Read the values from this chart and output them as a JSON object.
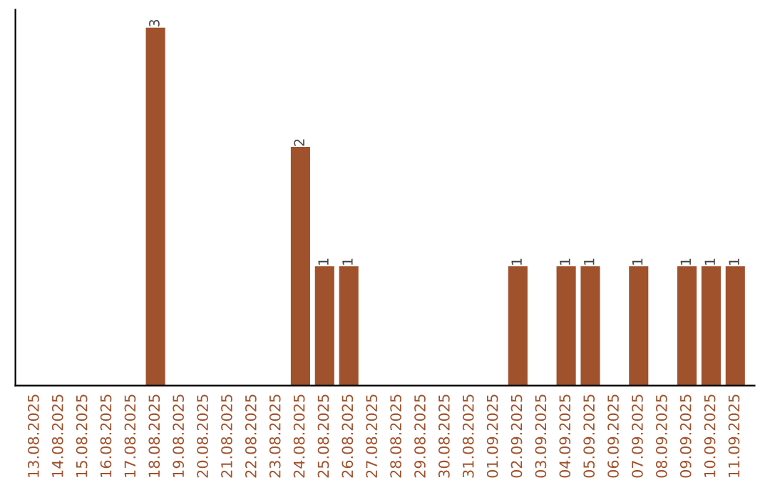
{
  "chart_data": {
    "type": "bar",
    "categories": [
      "13.08.2025",
      "14.08.2025",
      "15.08.2025",
      "16.08.2025",
      "17.08.2025",
      "18.08.2025",
      "19.08.2025",
      "20.08.2025",
      "21.08.2025",
      "22.08.2025",
      "23.08.2025",
      "24.08.2025",
      "25.08.2025",
      "26.08.2025",
      "27.08.2025",
      "28.08.2025",
      "29.08.2025",
      "30.08.2025",
      "31.08.2025",
      "01.09.2025",
      "02.09.2025",
      "03.09.2025",
      "04.09.2025",
      "05.09.2025",
      "06.09.2025",
      "07.09.2025",
      "08.09.2025",
      "09.09.2025",
      "10.09.2025",
      "11.09.2025"
    ],
    "values": [
      0,
      0,
      0,
      0,
      0,
      3,
      0,
      0,
      0,
      0,
      0,
      2,
      1,
      1,
      0,
      0,
      0,
      0,
      0,
      0,
      1,
      0,
      1,
      1,
      0,
      1,
      0,
      1,
      1,
      1
    ],
    "value_labels": [
      null,
      null,
      null,
      null,
      null,
      "3",
      null,
      null,
      null,
      null,
      null,
      "2",
      "1",
      "1",
      null,
      null,
      null,
      null,
      null,
      null,
      "1",
      null,
      "1",
      "1",
      null,
      "1",
      null,
      "1",
      "1",
      "1"
    ],
    "color": "#a0522d",
    "tick_labels": "x",
    "grid": false,
    "legend": false
  }
}
